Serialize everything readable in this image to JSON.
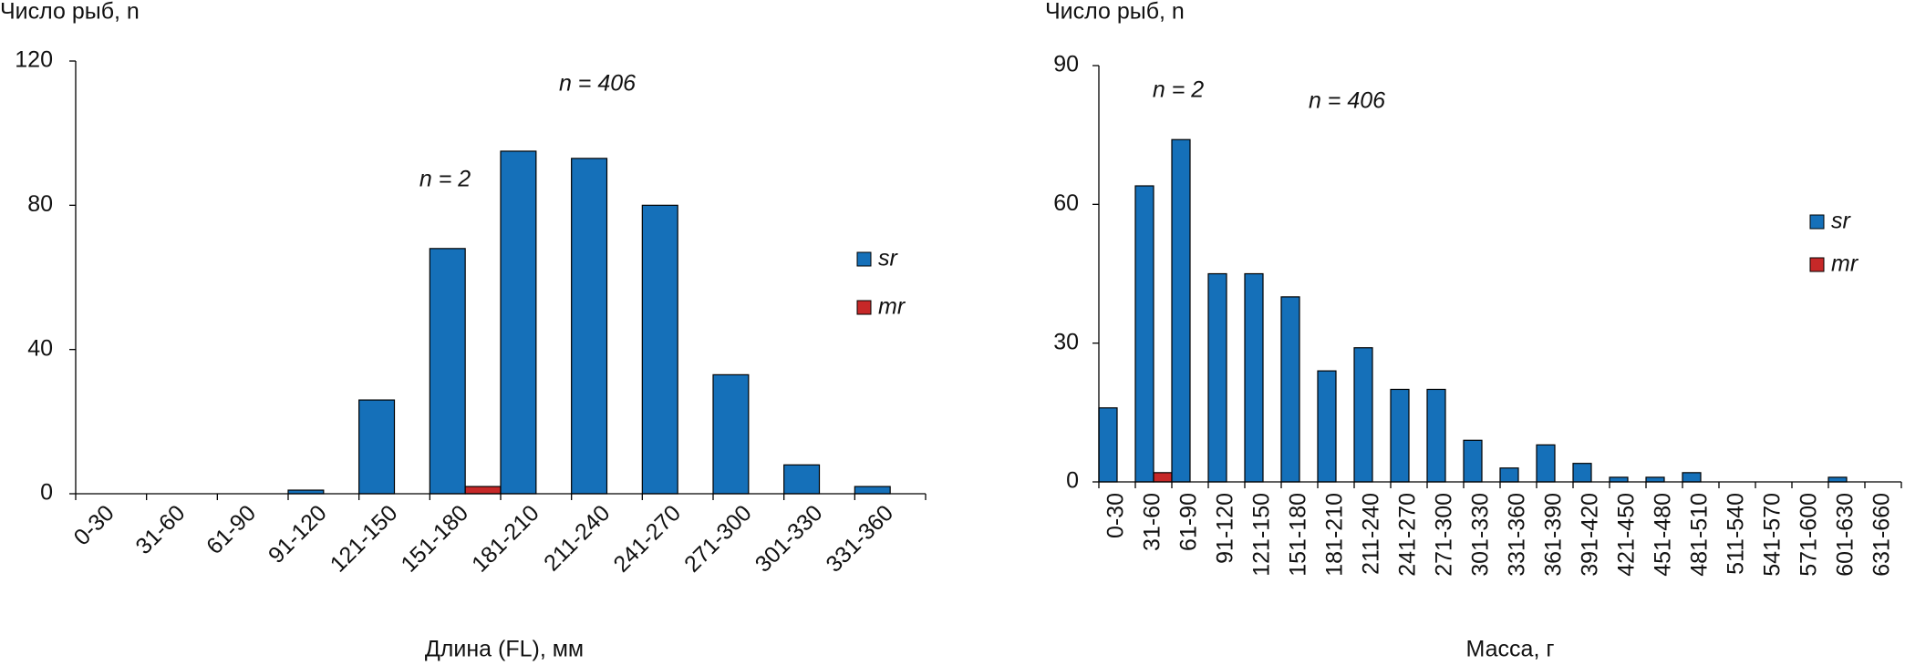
{
  "chart_data": [
    {
      "type": "bar",
      "y_label": "Число рыб, n",
      "x_label": "Длина (FL), мм",
      "annotations": [
        "n = 406",
        "n = 2"
      ],
      "categories": [
        "0-30",
        "31-60",
        "61-90",
        "91-120",
        "121-150",
        "151-180",
        "181-210",
        "211-240",
        "241-270",
        "271-300",
        "301-330",
        "331-360"
      ],
      "series": [
        {
          "name": "sr",
          "color": "#1570b9",
          "values": [
            0,
            0,
            0,
            1,
            26,
            68,
            95,
            93,
            80,
            33,
            8,
            2
          ]
        },
        {
          "name": "mr",
          "color": "#c62828",
          "values": [
            0,
            0,
            0,
            0,
            0,
            2,
            0,
            0,
            0,
            0,
            0,
            0
          ]
        }
      ],
      "ylim": [
        0,
        120
      ],
      "yticks": [
        0,
        40,
        80,
        120
      ],
      "grid": false,
      "legend": "right"
    },
    {
      "type": "bar",
      "y_label": "Число рыб, n",
      "x_label": "Масса, г",
      "annotations": [
        "n = 2",
        "n = 406"
      ],
      "categories": [
        "0-30",
        "31-60",
        "61-90",
        "91-120",
        "121-150",
        "151-180",
        "181-210",
        "211-240",
        "241-270",
        "271-300",
        "301-330",
        "331-360",
        "361-390",
        "391-420",
        "421-450",
        "451-480",
        "481-510",
        "511-540",
        "541-570",
        "571-600",
        "601-630",
        "631-660"
      ],
      "series": [
        {
          "name": "sr",
          "color": "#1570b9",
          "values": [
            16,
            64,
            74,
            45,
            45,
            40,
            24,
            29,
            20,
            20,
            9,
            3,
            8,
            4,
            1,
            1,
            2,
            0,
            0,
            0,
            1,
            0
          ]
        },
        {
          "name": "mr",
          "color": "#c62828",
          "values": [
            0,
            2,
            0,
            0,
            0,
            0,
            0,
            0,
            0,
            0,
            0,
            0,
            0,
            0,
            0,
            0,
            0,
            0,
            0,
            0,
            0,
            0
          ]
        }
      ],
      "ylim": [
        0,
        90
      ],
      "yticks": [
        0,
        30,
        60,
        90
      ],
      "grid": false,
      "legend": "right"
    }
  ]
}
